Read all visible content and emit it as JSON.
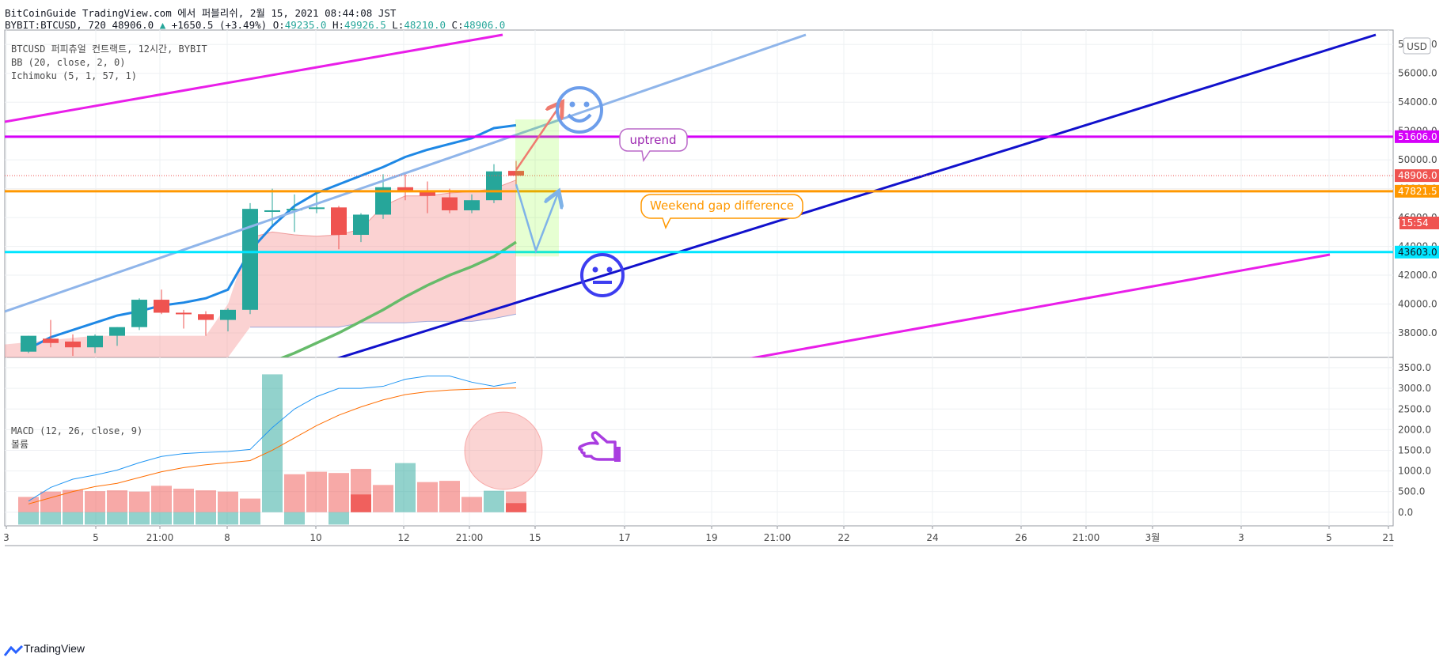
{
  "header": {
    "line1": "BitCoinGuide TradingView.com 에서 퍼블리쉬, 2월 15, 2021 08:44:08 JST",
    "symbol": "BYBIT:BTCUSD, 720 48906.0",
    "change": "+1650.5 (+3.49%)",
    "o_label": "O:",
    "o_val": "49235.0",
    "h_label": "H:",
    "h_val": "49926.5",
    "l_label": "L:",
    "l_val": "48210.0",
    "c_label": "C:",
    "c_val": "48906.0"
  },
  "legend_main": [
    "BTCUSD 퍼피츄얼 컨트랙트, 12시간, BYBIT",
    "BB (20, close, 2, 0)",
    "Ichimoku (5, 1, 57, 1)"
  ],
  "legend_sub": [
    "MACD (12, 26, close, 9)",
    "볼륨"
  ],
  "currency": "USD",
  "annotations": {
    "uptrend": "uptrend",
    "weekend_gap": "Weekend gap difference"
  },
  "price_badges": [
    {
      "text": "51606.0",
      "color": "#d500f9"
    },
    {
      "text": "48906.0",
      "color": "#ef5350"
    },
    {
      "text": "15:54",
      "color": "#ef5350"
    },
    {
      "text": "47821.5",
      "color": "#ff9800"
    },
    {
      "text": "43603.0",
      "color": "#00e5ff"
    }
  ],
  "footer": "TradingView",
  "chart_data": [
    {
      "type": "candlestick",
      "title": "BTCUSD 퍼피츄얼 컨트랙트, 12시간, BYBIT",
      "x_ticks": [
        "3",
        "5",
        "21:00",
        "8",
        "10",
        "12",
        "21:00",
        "15",
        "17",
        "19",
        "21:00",
        "22",
        "24",
        "26",
        "21:00",
        "3월",
        "3",
        "5",
        "21"
      ],
      "y_ticks": [
        38000,
        40000,
        42000,
        44000,
        46000,
        48000,
        50000,
        52000,
        54000,
        56000,
        58000
      ],
      "ylim": [
        36300,
        59000
      ],
      "candles": [
        {
          "o": 36700,
          "h": 37800,
          "l": 36600,
          "c": 37800
        },
        {
          "o": 37600,
          "h": 38900,
          "l": 37000,
          "c": 37300
        },
        {
          "o": 37400,
          "h": 37900,
          "l": 36400,
          "c": 37000
        },
        {
          "o": 37000,
          "h": 37900,
          "l": 36600,
          "c": 37800
        },
        {
          "o": 37800,
          "h": 38400,
          "l": 37100,
          "c": 38400
        },
        {
          "o": 38400,
          "h": 40400,
          "l": 38200,
          "c": 40300
        },
        {
          "o": 40300,
          "h": 41000,
          "l": 39300,
          "c": 39400
        },
        {
          "o": 39400,
          "h": 39600,
          "l": 38300,
          "c": 39300
        },
        {
          "o": 39300,
          "h": 39500,
          "l": 37800,
          "c": 38900
        },
        {
          "o": 38900,
          "h": 39700,
          "l": 38100,
          "c": 39600
        },
        {
          "o": 39600,
          "h": 47000,
          "l": 39300,
          "c": 46600
        },
        {
          "o": 46500,
          "h": 48000,
          "l": 45500,
          "c": 46500
        },
        {
          "o": 46500,
          "h": 47600,
          "l": 45000,
          "c": 46600
        },
        {
          "o": 46600,
          "h": 47800,
          "l": 46300,
          "c": 46700
        },
        {
          "o": 46700,
          "h": 46800,
          "l": 43800,
          "c": 44800
        },
        {
          "o": 44800,
          "h": 46300,
          "l": 44300,
          "c": 46200
        },
        {
          "o": 46200,
          "h": 49000,
          "l": 45900,
          "c": 48100
        },
        {
          "o": 48100,
          "h": 49100,
          "l": 47200,
          "c": 47800
        },
        {
          "o": 47800,
          "h": 48500,
          "l": 46300,
          "c": 47500
        },
        {
          "o": 47400,
          "h": 48000,
          "l": 46300,
          "c": 46500
        },
        {
          "o": 46500,
          "h": 47600,
          "l": 46300,
          "c": 47200
        },
        {
          "o": 47200,
          "h": 49700,
          "l": 47000,
          "c": 49200
        },
        {
          "o": 49235,
          "h": 49926.5,
          "l": 48210,
          "c": 48906
        }
      ],
      "bb_upper": [
        36900,
        37700,
        38200,
        38700,
        39200,
        39500,
        39900,
        40100,
        40400,
        41000,
        43700,
        45400,
        46800,
        47700,
        48300,
        48900,
        49500,
        50200,
        50700,
        51100,
        51500,
        52200,
        52400
      ],
      "cloud_top": [
        null,
        null,
        null,
        null,
        null,
        null,
        null,
        null,
        null,
        null,
        44600,
        45000,
        44800,
        44700,
        44800,
        45200,
        46800,
        47500,
        47500,
        47700,
        47800,
        48000,
        48600
      ],
      "cloud_bottom": [
        null,
        null,
        null,
        null,
        null,
        null,
        null,
        null,
        null,
        null,
        38400,
        38400,
        38400,
        38400,
        38400,
        38700,
        38700,
        38700,
        38800,
        38800,
        38800,
        39000,
        39300
      ],
      "lagging_line": [
        null,
        null,
        null,
        null,
        null,
        null,
        null,
        null,
        null,
        null,
        null,
        36000,
        36600,
        37300,
        38000,
        38800,
        39600,
        40500,
        41300,
        42000,
        42600,
        43300,
        44300
      ],
      "levels": [
        51606.0,
        48906.0,
        47821.5,
        43603.0
      ]
    },
    {
      "type": "bar",
      "title": "MACD (12, 26, close, 9)",
      "y_ticks": [
        0,
        500,
        1000,
        1500,
        2000,
        2500,
        3000,
        3500
      ],
      "ylim": [
        -330,
        3750
      ],
      "volume_bars": [
        {
          "v": 370,
          "dir": "down"
        },
        {
          "v": 500,
          "dir": "down"
        },
        {
          "v": 540,
          "dir": "down"
        },
        {
          "v": 510,
          "dir": "down"
        },
        {
          "v": 530,
          "dir": "down"
        },
        {
          "v": 500,
          "dir": "down"
        },
        {
          "v": 640,
          "dir": "down"
        },
        {
          "v": 570,
          "dir": "down"
        },
        {
          "v": 530,
          "dir": "down"
        },
        {
          "v": 500,
          "dir": "down"
        },
        {
          "v": 330,
          "dir": "down"
        },
        {
          "v": 3340,
          "dir": "up"
        },
        {
          "v": 920,
          "dir": "down"
        },
        {
          "v": 980,
          "dir": "down"
        },
        {
          "v": 950,
          "dir": "down"
        },
        {
          "v": 1050,
          "dir": "down"
        },
        {
          "v": 660,
          "dir": "down"
        },
        {
          "v": 1190,
          "dir": "up"
        },
        {
          "v": 730,
          "dir": "down"
        },
        {
          "v": 760,
          "dir": "down"
        },
        {
          "v": 370,
          "dir": "down"
        },
        {
          "v": 520,
          "dir": "up"
        },
        {
          "v": 500,
          "dir": "down"
        }
      ],
      "histogram": [
        -300,
        -300,
        -300,
        -300,
        -300,
        -300,
        -300,
        -300,
        -300,
        -300,
        -300,
        0,
        -300,
        0,
        -300,
        430,
        0,
        0,
        0,
        0,
        0,
        0,
        220
      ],
      "macd": [
        270,
        600,
        800,
        900,
        1020,
        1200,
        1350,
        1420,
        1450,
        1470,
        1520,
        2050,
        2500,
        2800,
        3000,
        3000,
        3050,
        3220,
        3300,
        3300,
        3150,
        3050,
        3150
      ],
      "signal": [
        200,
        350,
        500,
        620,
        700,
        840,
        980,
        1080,
        1150,
        1200,
        1250,
        1500,
        1800,
        2100,
        2350,
        2550,
        2720,
        2850,
        2920,
        2960,
        2980,
        3000,
        3010
      ]
    }
  ]
}
